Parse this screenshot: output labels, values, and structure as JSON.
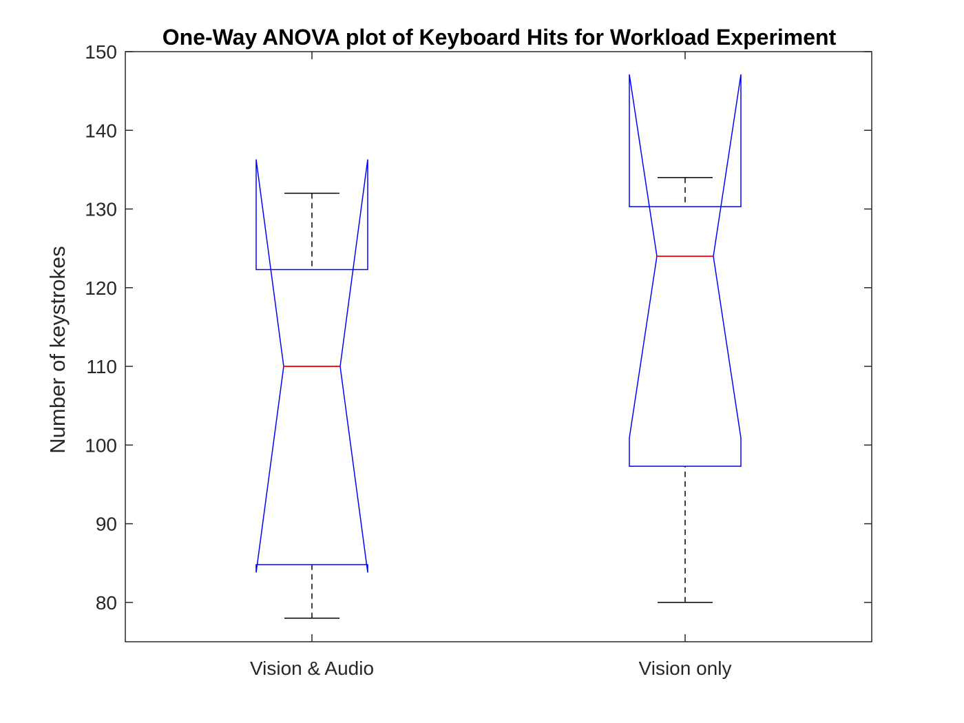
{
  "chart_data": {
    "type": "box",
    "title": "One-Way ANOVA plot of Keyboard Hits for Workload Experiment",
    "xlabel": "",
    "ylabel": "Number of keystrokes",
    "ylim": [
      75,
      150
    ],
    "yticks": [
      80,
      90,
      100,
      110,
      120,
      130,
      140,
      150
    ],
    "categories": [
      "Vision & Audio",
      "Vision only"
    ],
    "notched": true,
    "boxes": [
      {
        "category": "Vision & Audio",
        "whisker_low": 78,
        "q1": 84.8,
        "median": 110,
        "q3": 122.3,
        "whisker_high": 132,
        "notch_low": 83.8,
        "notch_high": 136.3
      },
      {
        "category": "Vision only",
        "whisker_low": 80,
        "q1": 97.3,
        "median": 124,
        "q3": 130.3,
        "whisker_high": 134,
        "notch_low": 100.9,
        "notch_high": 147.1
      }
    ],
    "colors": {
      "box": "#0000ff",
      "median": "#ff0000",
      "whisker": "#000000",
      "axis": "#262626"
    }
  }
}
